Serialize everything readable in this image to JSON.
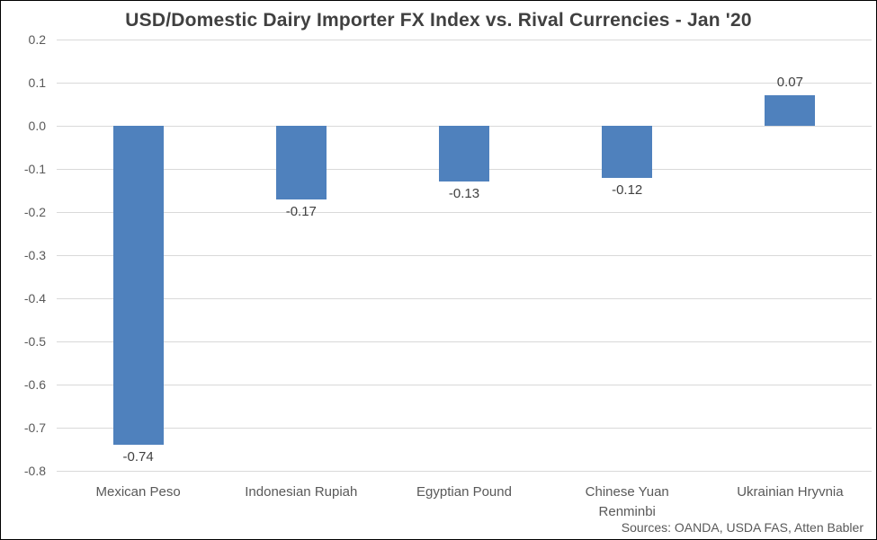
{
  "title": "USD/Domestic Dairy Importer FX Index vs. Rival Currencies - Jan '20",
  "source_note": "Sources: OANDA, USDA FAS, Atten Babler",
  "colors": {
    "bar": "#4F81BD",
    "gridline": "#D9D9D9",
    "title_text": "#404040",
    "axis_text": "#595959",
    "data_label_text": "#404040",
    "frame_border": "#000000",
    "background": "#FFFFFF"
  },
  "chart_data": {
    "type": "bar",
    "title": "USD/Domestic Dairy Importer FX Index vs. Rival Currencies - Jan '20",
    "categories": [
      "Mexican Peso",
      "Indonesian Rupiah",
      "Egyptian Pound",
      "Chinese Yuan Renminbi",
      "Ukrainian Hryvnia"
    ],
    "values": [
      -0.74,
      -0.17,
      -0.13,
      -0.12,
      0.07
    ],
    "data_labels": [
      "-0.74",
      "-0.17",
      "-0.13",
      "-0.12",
      "0.07"
    ],
    "xlabel": "",
    "ylabel": "",
    "ylim": [
      -0.8,
      0.2
    ],
    "ytick_step": 0.1,
    "yticks": [
      "0.2",
      "0.1",
      "0.0",
      "-0.1",
      "-0.2",
      "-0.3",
      "-0.4",
      "-0.5",
      "-0.6",
      "-0.7",
      "-0.8"
    ],
    "grid": true,
    "legend": false,
    "bar_color": "#4F81BD",
    "annotation": "Sources: OANDA, USDA FAS, Atten Babler"
  }
}
